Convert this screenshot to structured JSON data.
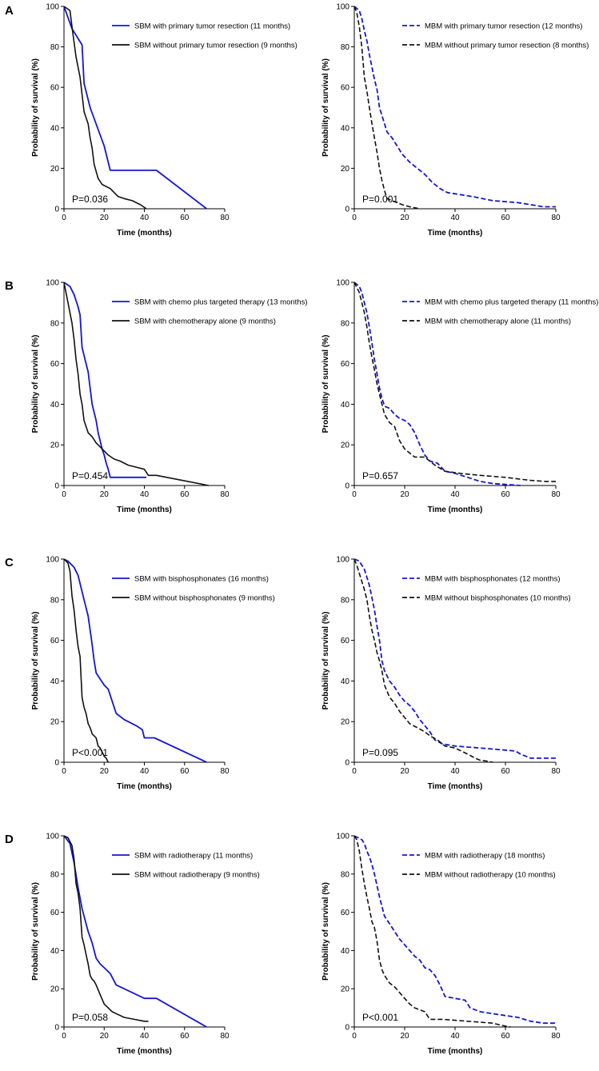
{
  "colors": {
    "blue": "#1515d6",
    "black": "#111111"
  },
  "row_labels": [
    "A",
    "B",
    "C",
    "D"
  ],
  "chart_data": [
    {
      "type": "line",
      "panel": "A-left",
      "row": 0,
      "col": 0,
      "xlabel": "Time (months)",
      "ylabel": "Probability of survival (%)",
      "xlim": [
        0,
        80
      ],
      "ylim": [
        0,
        100
      ],
      "xticks": [
        "0",
        "20",
        "40",
        "60",
        "80"
      ],
      "yticks": [
        "0",
        "20",
        "40",
        "60",
        "80",
        "100"
      ],
      "p_value": "P=0.036",
      "series": [
        {
          "name": "SBM with primary tumor resection (11 months)",
          "color": "#1515d6",
          "dash": false,
          "x": [
            0,
            4,
            9,
            10,
            13,
            20,
            23,
            46,
            71
          ],
          "y": [
            100,
            89,
            81,
            62,
            50,
            31,
            19,
            19,
            0
          ]
        },
        {
          "name": "SBM without primary tumor resection (9  months)",
          "color": "#111111",
          "dash": false,
          "x": [
            0,
            3,
            4,
            6,
            8,
            10,
            12,
            13,
            14,
            15,
            17,
            19,
            21,
            23,
            27,
            30,
            34,
            38,
            41
          ],
          "y": [
            100,
            98,
            90,
            75,
            65,
            48,
            42,
            35,
            30,
            22,
            15,
            12,
            11,
            10,
            6,
            5,
            4,
            2,
            0
          ]
        }
      ]
    },
    {
      "type": "line",
      "panel": "A-right",
      "row": 0,
      "col": 1,
      "xlabel": "Time (months)",
      "ylabel": "Probability of survival (%)",
      "xlim": [
        0,
        80
      ],
      "ylim": [
        0,
        100
      ],
      "xticks": [
        "0",
        "20",
        "40",
        "60",
        "80"
      ],
      "yticks": [
        "0",
        "20",
        "40",
        "60",
        "80",
        "100"
      ],
      "p_value": "P=0.001",
      "series": [
        {
          "name": "MBM with primary tumor resection (12 months)",
          "color": "#1515d6",
          "dash": true,
          "x": [
            0,
            2,
            3,
            4,
            5,
            6,
            7,
            8,
            9,
            10,
            12,
            13,
            15,
            17,
            19,
            22,
            25,
            28,
            31,
            34,
            37,
            42,
            47,
            55,
            60,
            65,
            70,
            75,
            80
          ],
          "y": [
            100,
            98,
            94,
            88,
            83,
            76,
            70,
            64,
            59,
            50,
            42,
            38,
            35,
            31,
            27,
            23,
            20,
            17,
            13,
            10,
            8,
            7,
            6,
            4,
            3.5,
            3,
            2,
            1,
            1
          ]
        },
        {
          "name": "MBM without primary tumor resection (8 months)",
          "color": "#111111",
          "dash": true,
          "x": [
            0,
            1,
            2,
            3,
            4,
            5,
            6,
            7,
            8,
            9,
            10,
            11,
            12,
            13,
            15,
            17,
            19,
            22,
            26
          ],
          "y": [
            100,
            97,
            90,
            80,
            65,
            58,
            50,
            42,
            35,
            28,
            20,
            14,
            9,
            5,
            4,
            3,
            2,
            1,
            0
          ]
        }
      ]
    },
    {
      "type": "line",
      "panel": "B-left",
      "row": 1,
      "col": 0,
      "xlabel": "Time (months)",
      "ylabel": "Probability of survival (%)",
      "xlim": [
        0,
        80
      ],
      "ylim": [
        0,
        100
      ],
      "xticks": [
        "0",
        "20",
        "40",
        "60",
        "80"
      ],
      "yticks": [
        "0",
        "20",
        "40",
        "60",
        "80",
        "100"
      ],
      "p_value": "P=0.454",
      "series": [
        {
          "name": "SBM with chemo plus targeted therapy (13 months)",
          "color": "#1515d6",
          "dash": false,
          "x": [
            0,
            3,
            5,
            7,
            8,
            9,
            10,
            11,
            12,
            13,
            14,
            15,
            16,
            17,
            18,
            19,
            20,
            21,
            22,
            23,
            26,
            41
          ],
          "y": [
            100,
            98,
            94,
            88,
            84,
            68,
            64,
            60,
            56,
            48,
            40,
            36,
            32,
            26,
            22,
            18,
            15,
            11,
            8,
            4,
            4,
            4
          ]
        },
        {
          "name": "SBM with chemotherapy alone (9  months)",
          "color": "#111111",
          "dash": false,
          "x": [
            0,
            2,
            3,
            4,
            5,
            6,
            7,
            8,
            9,
            10,
            11,
            12,
            14,
            16,
            18,
            20,
            22,
            25,
            28,
            32,
            36,
            40,
            42,
            46,
            72
          ],
          "y": [
            100,
            90,
            85,
            80,
            72,
            62,
            55,
            45,
            40,
            32,
            29,
            26,
            24,
            21,
            19,
            17,
            15,
            13,
            12,
            10,
            9,
            8,
            5,
            5,
            0
          ]
        }
      ]
    },
    {
      "type": "line",
      "panel": "B-right",
      "row": 1,
      "col": 1,
      "xlabel": "Time (months)",
      "ylabel": "Probability of survival (%)",
      "xlim": [
        0,
        80
      ],
      "ylim": [
        0,
        100
      ],
      "xticks": [
        "0",
        "20",
        "40",
        "60",
        "80"
      ],
      "yticks": [
        "0",
        "20",
        "40",
        "60",
        "80",
        "100"
      ],
      "p_value": "P=0.657",
      "series": [
        {
          "name": "MBM with chemo plus targeted therapy (11 months)",
          "color": "#1515d6",
          "dash": true,
          "x": [
            0,
            2,
            3,
            4,
            5,
            6,
            7,
            8,
            9,
            10,
            11,
            12,
            14,
            16,
            18,
            20,
            22,
            24,
            26,
            28,
            30,
            33,
            36,
            40,
            45,
            50,
            55,
            60,
            66
          ],
          "y": [
            100,
            98,
            95,
            90,
            85,
            78,
            70,
            62,
            55,
            48,
            43,
            39,
            38,
            35,
            33,
            32,
            30,
            26,
            20,
            15,
            12,
            11,
            7,
            6,
            4,
            2,
            1,
            0.5,
            0
          ]
        },
        {
          "name": "MBM with chemotherapy alone (11 months)",
          "color": "#111111",
          "dash": true,
          "x": [
            0,
            2,
            3,
            4,
            5,
            6,
            7,
            8,
            9,
            10,
            11,
            12,
            14,
            16,
            18,
            20,
            22,
            24,
            26,
            28,
            32,
            36,
            42,
            50,
            60,
            70,
            76,
            80
          ],
          "y": [
            100,
            95,
            90,
            85,
            78,
            70,
            63,
            57,
            50,
            45,
            40,
            35,
            31,
            29,
            22,
            18,
            16,
            14,
            14,
            14,
            10,
            7,
            6,
            5,
            4,
            2.5,
            2,
            2
          ]
        }
      ]
    },
    {
      "type": "line",
      "panel": "C-left",
      "row": 2,
      "col": 0,
      "xlabel": "Time (months)",
      "ylabel": "Probability of survival (%)",
      "xlim": [
        0,
        80
      ],
      "ylim": [
        0,
        100
      ],
      "xticks": [
        "0",
        "20",
        "40",
        "60",
        "80"
      ],
      "yticks": [
        "0",
        "20",
        "40",
        "60",
        "80",
        "100"
      ],
      "p_value": "P<0.001",
      "series": [
        {
          "name": "SBM with bisphosphonates (16 months)",
          "color": "#1515d6",
          "dash": false,
          "x": [
            0,
            2,
            4,
            5,
            7,
            8,
            10,
            12,
            13,
            14,
            15,
            16,
            18,
            20,
            22,
            24,
            26,
            30,
            36,
            39,
            40,
            42,
            45,
            71
          ],
          "y": [
            100,
            99,
            97,
            96,
            92,
            88,
            80,
            72,
            65,
            58,
            50,
            44,
            41,
            38,
            36,
            30,
            24,
            21,
            18,
            16,
            12,
            12,
            12,
            0
          ]
        },
        {
          "name": "SBM without bisphosphonates (9  months)",
          "color": "#111111",
          "dash": false,
          "x": [
            0,
            2,
            3,
            4,
            5,
            6,
            7,
            8,
            9,
            10,
            11,
            12,
            13,
            14,
            16,
            17,
            18,
            20,
            21,
            22
          ],
          "y": [
            100,
            98,
            94,
            82,
            75,
            65,
            57,
            52,
            32,
            27,
            24,
            19,
            17,
            14,
            12,
            8,
            7,
            3,
            2,
            0
          ]
        }
      ]
    },
    {
      "type": "line",
      "panel": "C-right",
      "row": 2,
      "col": 1,
      "xlabel": "Time (months)",
      "ylabel": "Probability of survival (%)",
      "xlim": [
        0,
        80
      ],
      "ylim": [
        0,
        100
      ],
      "xticks": [
        "0",
        "20",
        "40",
        "60",
        "80"
      ],
      "yticks": [
        "0",
        "20",
        "40",
        "60",
        "80",
        "100"
      ],
      "p_value": "P=0.095",
      "series": [
        {
          "name": "MBM with bisphosphonates (12  months)",
          "color": "#1515d6",
          "dash": true,
          "x": [
            0,
            2,
            3,
            4,
            5,
            6,
            7,
            8,
            9,
            10,
            11,
            12,
            14,
            16,
            18,
            20,
            22,
            24,
            26,
            28,
            30,
            32,
            35,
            40,
            45,
            50,
            55,
            60,
            64,
            66,
            70,
            75,
            80
          ],
          "y": [
            100,
            99,
            97,
            95,
            91,
            87,
            81,
            75,
            67,
            60,
            50,
            45,
            40,
            37,
            33,
            30,
            28,
            25,
            21,
            18,
            15,
            11,
            9,
            8,
            7.5,
            7,
            6.5,
            6,
            5.5,
            4,
            2,
            2,
            2
          ]
        },
        {
          "name": "MBM without bisphosphonates (10  months)",
          "color": "#111111",
          "dash": true,
          "x": [
            0,
            1,
            2,
            3,
            4,
            5,
            6,
            7,
            8,
            9,
            10,
            11,
            12,
            14,
            16,
            18,
            20,
            22,
            25,
            28,
            30,
            33,
            36,
            40,
            45,
            48,
            50,
            53,
            55
          ],
          "y": [
            100,
            97,
            93,
            89,
            85,
            80,
            72,
            65,
            60,
            54,
            50,
            45,
            38,
            32,
            29,
            25,
            22,
            19,
            17,
            15,
            13,
            11,
            8,
            7,
            4,
            2,
            1,
            0.5,
            0
          ]
        }
      ]
    },
    {
      "type": "line",
      "panel": "D-left",
      "row": 3,
      "col": 0,
      "xlabel": "Time (months)",
      "ylabel": "Probability of survival (%)",
      "xlim": [
        0,
        80
      ],
      "ylim": [
        0,
        100
      ],
      "xticks": [
        "0",
        "20",
        "40",
        "60",
        "80"
      ],
      "yticks": [
        "0",
        "20",
        "40",
        "60",
        "80",
        "100"
      ],
      "p_value": "P=0.058",
      "series": [
        {
          "name": "SBM with radiotherapy (11 months)",
          "color": "#1515d6",
          "dash": false,
          "x": [
            0,
            3,
            5,
            7,
            9,
            10,
            12,
            14,
            16,
            18,
            20,
            23,
            26,
            40,
            46,
            71
          ],
          "y": [
            100,
            96,
            86,
            73,
            62,
            58,
            50,
            44,
            36,
            33,
            31,
            28,
            22,
            15,
            15,
            0
          ]
        },
        {
          "name": "SBM without radiotherapy (9  months)",
          "color": "#111111",
          "dash": false,
          "x": [
            0,
            2,
            4,
            5,
            6,
            7,
            8,
            9,
            10,
            11,
            12,
            13,
            14,
            15,
            16,
            18,
            20,
            22,
            24,
            26,
            30,
            35,
            40,
            42
          ],
          "y": [
            100,
            99,
            95,
            88,
            75,
            70,
            62,
            47,
            43,
            38,
            33,
            27,
            25,
            24,
            22,
            17,
            12,
            10,
            8,
            7,
            5,
            4,
            3,
            3
          ]
        }
      ]
    },
    {
      "type": "line",
      "panel": "D-right",
      "row": 3,
      "col": 1,
      "xlabel": "Time (months)",
      "ylabel": "Probability of survival (%)",
      "xlim": [
        0,
        80
      ],
      "ylim": [
        0,
        100
      ],
      "xticks": [
        "0",
        "20",
        "40",
        "60",
        "80"
      ],
      "yticks": [
        "0",
        "20",
        "40",
        "60",
        "80",
        "100"
      ],
      "p_value": "P<0.001",
      "series": [
        {
          "name": "MBM with radiotherapy (18 months)",
          "color": "#1515d6",
          "dash": true,
          "x": [
            0,
            3,
            4,
            5,
            6,
            7,
            8,
            9,
            10,
            11,
            12,
            14,
            16,
            18,
            20,
            22,
            24,
            26,
            28,
            30,
            32,
            34,
            36,
            40,
            44,
            46,
            50,
            55,
            60,
            65,
            70,
            75,
            80
          ],
          "y": [
            100,
            98,
            96,
            92,
            89,
            85,
            80,
            74,
            68,
            63,
            58,
            54,
            50,
            46,
            43,
            40,
            37,
            35,
            31,
            30,
            27,
            22,
            16,
            15,
            14,
            10,
            8,
            7,
            6,
            5,
            3,
            2,
            2
          ]
        },
        {
          "name": "MBM without radiotherapy (10 months)",
          "color": "#111111",
          "dash": true,
          "x": [
            0,
            1,
            2,
            3,
            4,
            5,
            6,
            7,
            8,
            9,
            10,
            11,
            12,
            14,
            16,
            18,
            20,
            22,
            24,
            26,
            28,
            30,
            35,
            40,
            45,
            50,
            55,
            58,
            60,
            62
          ],
          "y": [
            100,
            98,
            92,
            83,
            75,
            68,
            62,
            55,
            52,
            45,
            35,
            30,
            27,
            23,
            21,
            18,
            15,
            12,
            10,
            9,
            8,
            4,
            4,
            3.5,
            3,
            2.5,
            2,
            1,
            0.5,
            0
          ]
        }
      ]
    }
  ]
}
